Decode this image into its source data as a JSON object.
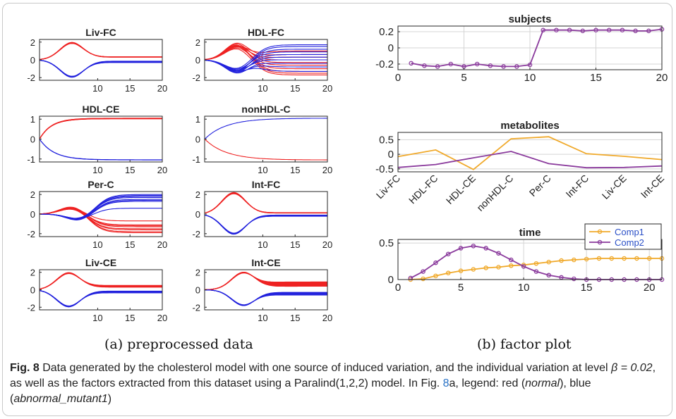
{
  "chart_data": [
    {
      "type": "line",
      "panel": "a",
      "title": "Liv-FC",
      "xlim": [
        1,
        20
      ],
      "ylim": [
        -2.3,
        2.3
      ],
      "yticks": [
        -2,
        0,
        2
      ],
      "xticks": [
        10,
        15,
        20
      ],
      "series": [
        {
          "color": "#ee2222",
          "shape": "bump",
          "amp": 1.95,
          "peak": 6,
          "final": 0.3,
          "spread": [
            0,
            0.05
          ],
          "count": 8
        },
        {
          "color": "#2222dd",
          "shape": "bump",
          "amp": -1.95,
          "peak": 6,
          "final": -0.15,
          "spread": [
            0,
            0.15
          ],
          "count": 8
        }
      ]
    },
    {
      "type": "line",
      "panel": "a",
      "title": "HDL-FC",
      "xlim": [
        1,
        20
      ],
      "ylim": [
        -2.3,
        2.3
      ],
      "yticks": [
        -2,
        0,
        2
      ],
      "xticks": [
        10,
        15,
        20
      ],
      "series": [
        {
          "color": "#ee2222",
          "shape": "mixed",
          "amp": 1.9,
          "peak": 6,
          "finals": [
            -1.7,
            -1.3,
            -1,
            -0.6,
            -0.3,
            0,
            0.3,
            0.6,
            -1.5,
            1.0
          ],
          "count": 10
        },
        {
          "color": "#2222dd",
          "shape": "mixed",
          "amp": -1.5,
          "peak": 6,
          "finals": [
            1.7,
            1.5,
            1.2,
            0.9,
            0.6,
            0.3,
            0,
            -0.4,
            -0.8,
            -1.3
          ],
          "count": 10
        }
      ]
    },
    {
      "type": "line",
      "panel": "a",
      "title": "HDL-CE",
      "xlim": [
        1,
        20
      ],
      "ylim": [
        -1.15,
        1.15
      ],
      "yticks": [
        -1,
        0,
        1
      ],
      "xticks": [
        10,
        15,
        20
      ],
      "series": [
        {
          "color": "#ee2222",
          "shape": "sat",
          "final": 1.05,
          "rate": 0.55,
          "spread": [
            0,
            0.03
          ],
          "count": 8
        },
        {
          "color": "#2222dd",
          "shape": "sat",
          "final": -1.05,
          "rate": 0.45,
          "spread": [
            0,
            0.01
          ],
          "count": 2
        }
      ]
    },
    {
      "type": "line",
      "panel": "a",
      "title": "nonHDL-C",
      "xlim": [
        1,
        20
      ],
      "ylim": [
        -1.15,
        1.15
      ],
      "yticks": [
        -1,
        0,
        1
      ],
      "xticks": [
        10,
        15,
        20
      ],
      "series": [
        {
          "color": "#2222dd",
          "shape": "sat",
          "final": 1.05,
          "rate": 0.3,
          "spread": [
            0,
            0.0
          ],
          "count": 1
        },
        {
          "color": "#ee2222",
          "shape": "sat",
          "final": -1.05,
          "rate": 0.3,
          "spread": [
            0,
            0.0
          ],
          "count": 1
        }
      ]
    },
    {
      "type": "line",
      "panel": "a",
      "title": "Per-C",
      "xlim": [
        1,
        20
      ],
      "ylim": [
        -2.3,
        2.3
      ],
      "yticks": [
        -2,
        0,
        2
      ],
      "xticks": [
        10,
        15,
        20
      ],
      "series": [
        {
          "color": "#ee2222",
          "shape": "mixed",
          "amp": 0.8,
          "peak": 6,
          "finals": [
            -1.1,
            -1.3,
            -1.5,
            -1.6,
            -1.8,
            -1.9,
            -0.7,
            -1.2
          ],
          "count": 8
        },
        {
          "color": "#2222dd",
          "shape": "mixed",
          "amp": -0.7,
          "peak": 7,
          "finals": [
            0.6,
            1.3,
            1.5,
            1.7,
            1.8,
            1.9,
            2.0,
            1.4
          ],
          "count": 8
        }
      ]
    },
    {
      "type": "line",
      "panel": "a",
      "title": "Int-FC",
      "xlim": [
        1,
        20
      ],
      "ylim": [
        -2.3,
        2.3
      ],
      "yticks": [
        -2,
        0,
        2
      ],
      "xticks": [
        10,
        15,
        20
      ],
      "series": [
        {
          "color": "#ee2222",
          "shape": "bump",
          "amp": 2.2,
          "peak": 5.5,
          "final": 0.1,
          "spread": [
            0,
            0.05
          ],
          "count": 8
        },
        {
          "color": "#2222dd",
          "shape": "bump",
          "amp": -2.05,
          "peak": 5.5,
          "final": -0.1,
          "spread": [
            0,
            0.12
          ],
          "count": 8
        }
      ]
    },
    {
      "type": "line",
      "panel": "a",
      "title": "Liv-CE",
      "xlim": [
        1,
        20
      ],
      "ylim": [
        -2.3,
        2.3
      ],
      "yticks": [
        -2,
        0,
        2
      ],
      "xticks": [
        10,
        15,
        20
      ],
      "series": [
        {
          "color": "#ee2222",
          "shape": "bump",
          "amp": 1.95,
          "peak": 5.5,
          "final": 0.3,
          "spread": [
            0,
            0.2
          ],
          "count": 10
        },
        {
          "color": "#2222dd",
          "shape": "bump",
          "amp": -1.95,
          "peak": 5.5,
          "final": -0.15,
          "spread": [
            0,
            0.2
          ],
          "count": 10
        }
      ]
    },
    {
      "type": "line",
      "panel": "a",
      "title": "Int-CE",
      "xlim": [
        1,
        20
      ],
      "ylim": [
        -2.3,
        2.3
      ],
      "yticks": [
        -2,
        0,
        2
      ],
      "xticks": [
        10,
        15,
        20
      ],
      "series": [
        {
          "color": "#ee2222",
          "shape": "bump",
          "amp": 2.0,
          "peak": 7,
          "final": 0.4,
          "spread": [
            0,
            0.5
          ],
          "count": 10
        },
        {
          "color": "#2222dd",
          "shape": "bump",
          "amp": -1.8,
          "peak": 7,
          "final": -0.3,
          "spread": [
            0,
            0.3
          ],
          "count": 10
        }
      ]
    },
    {
      "type": "line",
      "panel": "b",
      "title": "subjects",
      "xlim": [
        0,
        20
      ],
      "ylim": [
        -0.27,
        0.27
      ],
      "xticks": [
        0,
        5,
        10,
        15,
        20
      ],
      "yticks": [
        -0.2,
        0,
        0.2
      ],
      "yticklabels": [
        "-0.2",
        "0",
        "0.2"
      ],
      "x": [
        1,
        2,
        3,
        4,
        5,
        6,
        7,
        8,
        9,
        10,
        11,
        12,
        13,
        14,
        15,
        16,
        17,
        18,
        19,
        20
      ],
      "series": [
        {
          "color": "#8a3a9c",
          "values": [
            -0.19,
            -0.22,
            -0.23,
            -0.2,
            -0.23,
            -0.2,
            -0.22,
            -0.23,
            -0.23,
            -0.21,
            0.22,
            0.22,
            0.22,
            0.21,
            0.22,
            0.22,
            0.22,
            0.21,
            0.21,
            0.23
          ]
        }
      ]
    },
    {
      "type": "line",
      "panel": "b",
      "title": "metabolites",
      "ylim": [
        -0.6,
        0.75
      ],
      "yticks": [
        -0.5,
        0,
        0.5
      ],
      "yticklabels": [
        "-0.5",
        "0",
        "0.5"
      ],
      "categories": [
        "Liv-FC",
        "HDL-FC",
        "HDL-CE",
        "nonHDL-C",
        "Per-C",
        "Int-FC",
        "Liv-CE",
        "Int-CE"
      ],
      "series": [
        {
          "color": "#f0a92a",
          "values": [
            -0.08,
            0.15,
            -0.52,
            0.53,
            0.6,
            0.02,
            -0.07,
            -0.18
          ]
        },
        {
          "color": "#8a3a9c",
          "values": [
            -0.45,
            -0.35,
            -0.12,
            0.1,
            -0.32,
            -0.46,
            -0.45,
            -0.4
          ]
        }
      ]
    },
    {
      "type": "line",
      "panel": "b",
      "title": "time",
      "xlim": [
        0,
        21
      ],
      "ylim": [
        0,
        0.55
      ],
      "xticks": [
        0,
        5,
        10,
        15,
        20
      ],
      "yticks": [
        0,
        0.5
      ],
      "yticklabels": [
        "0",
        "0.5"
      ],
      "x": [
        1,
        2,
        3,
        4,
        5,
        6,
        7,
        8,
        9,
        10,
        11,
        12,
        13,
        14,
        15,
        16,
        17,
        18,
        19,
        20,
        21
      ],
      "legend": {
        "position": "top-right",
        "entries": [
          "Comp1",
          "Comp2"
        ]
      },
      "series": [
        {
          "name": "Comp1",
          "color": "#f0a92a",
          "values": [
            0,
            0.01,
            0.05,
            0.09,
            0.12,
            0.14,
            0.16,
            0.17,
            0.19,
            0.2,
            0.22,
            0.24,
            0.26,
            0.27,
            0.28,
            0.29,
            0.29,
            0.29,
            0.29,
            0.29,
            0.29
          ]
        },
        {
          "name": "Comp2",
          "color": "#8a3a9c",
          "values": [
            0.02,
            0.11,
            0.23,
            0.35,
            0.43,
            0.46,
            0.43,
            0.36,
            0.27,
            0.18,
            0.11,
            0.06,
            0.03,
            0.01,
            0.0,
            0.0,
            0.0,
            0.0,
            0.0,
            0.0,
            0.0
          ]
        }
      ]
    }
  ],
  "subcaptions": {
    "a": "(a) preprocessed data",
    "b": "(b) factor plot"
  },
  "caption": {
    "label": "Fig. 8",
    "part1": " Data generated by the cholesterol model with one source of induced variation, and the individual variation at level ",
    "math": "β = 0.02",
    "part2": ", as well as the factors extracted from this dataset using a Paralind(1,2,2) model. In Fig. ",
    "ref": "8",
    "part3": "a, legend: red (",
    "normal": "normal",
    "part4": "), blue (",
    "abnormal": "abnormal_mutant1",
    "part5": ")"
  }
}
